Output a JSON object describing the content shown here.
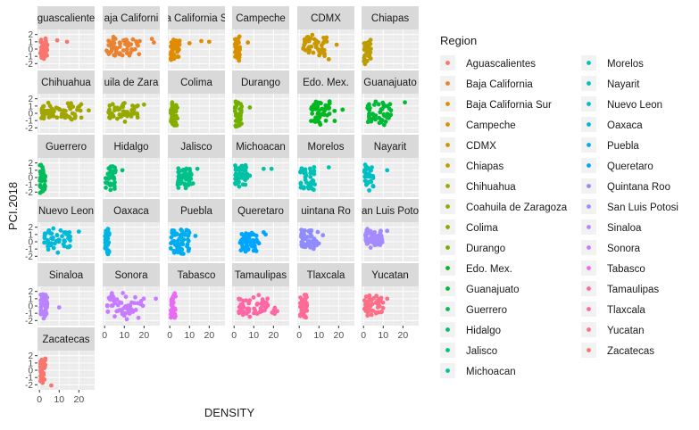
{
  "chart_data": {
    "type": "scatter",
    "xlabel": "DENSITY",
    "ylabel": "PCI.2018",
    "xlim": [
      -1,
      28
    ],
    "ylim": [
      -2.7,
      2.7
    ],
    "x_ticks": [
      0,
      10,
      20
    ],
    "y_ticks": [
      -2,
      -1,
      0,
      1,
      2
    ],
    "grid": true,
    "legend_title": "Region",
    "legend_position": "right",
    "panels": [
      {
        "name": "Aguascalientes",
        "label": "guascaliente",
        "color": "#F8766D",
        "x_range": [
          0.5,
          4
        ],
        "y_range": [
          -1.9,
          1.9
        ],
        "n": 40,
        "extra": [
          [
            9,
            1.2
          ],
          [
            14,
            1.0
          ]
        ]
      },
      {
        "name": "Baja California",
        "label": "aja Californi",
        "color": "#EA8331",
        "x_range": [
          1,
          18
        ],
        "y_range": [
          -1.2,
          2.0
        ],
        "n": 55,
        "extra": [
          [
            25,
            0.9
          ],
          [
            24,
            1.4
          ]
        ]
      },
      {
        "name": "Baja California Sur",
        "label": "a California S",
        "color": "#E08B00",
        "x_range": [
          0.5,
          5
        ],
        "y_range": [
          -1.7,
          2.0
        ],
        "n": 45,
        "extra": [
          [
            10,
            0.8
          ],
          [
            16,
            1.1
          ],
          [
            20,
            1.0
          ]
        ]
      },
      {
        "name": "Campeche",
        "label": "Campeche",
        "color": "#D89000",
        "x_range": [
          0.5,
          3
        ],
        "y_range": [
          -2.0,
          1.9
        ],
        "n": 35,
        "extra": [
          [
            7,
            0.9
          ]
        ]
      },
      {
        "name": "CDMX",
        "label": "CDMX",
        "color": "#C99800",
        "x_range": [
          2,
          14
        ],
        "y_range": [
          -1.0,
          2.0
        ],
        "n": 45,
        "extra": [
          [
            19,
            0.6
          ],
          [
            15,
            -1.4
          ]
        ]
      },
      {
        "name": "Chiapas",
        "label": "Chiapas",
        "color": "#BB9D00",
        "x_range": [
          0.2,
          4
        ],
        "y_range": [
          -2.2,
          2.0
        ],
        "n": 40,
        "extra": []
      },
      {
        "name": "Chihuahua",
        "label": "Chihuahua",
        "color": "#A3A500",
        "x_range": [
          1,
          22
        ],
        "y_range": [
          -1.3,
          1.6
        ],
        "n": 60,
        "extra": [
          [
            25,
            0.4
          ]
        ]
      },
      {
        "name": "Coahuila de Zaragoza",
        "label": "uila de Zara",
        "color": "#96A900",
        "x_range": [
          2,
          18
        ],
        "y_range": [
          -1.5,
          1.7
        ],
        "n": 55,
        "extra": [
          [
            20,
            1.2
          ]
        ]
      },
      {
        "name": "Colima",
        "label": "Colima",
        "color": "#85AD00",
        "x_range": [
          0.5,
          4
        ],
        "y_range": [
          -2.0,
          2.0
        ],
        "n": 30,
        "extra": []
      },
      {
        "name": "Durango",
        "label": "Durango",
        "color": "#72B000",
        "x_range": [
          0.5,
          4
        ],
        "y_range": [
          -2.0,
          2.0
        ],
        "n": 35,
        "extra": [
          [
            8,
            0.8
          ]
        ]
      },
      {
        "name": "Edo. Mex.",
        "label": "Edo. Mex.",
        "color": "#00B81F",
        "x_range": [
          6,
          18
        ],
        "y_range": [
          -1.8,
          2.0
        ],
        "n": 55,
        "extra": [
          [
            22,
            0.5
          ]
        ]
      },
      {
        "name": "Guanajuato",
        "label": "Guanajuato",
        "color": "#00B936",
        "x_range": [
          2,
          14
        ],
        "y_range": [
          -1.8,
          1.9
        ],
        "n": 55,
        "extra": [
          [
            21,
            1.5
          ]
        ]
      },
      {
        "name": "Guerrero",
        "label": "Guerrero",
        "color": "#00BC59",
        "x_range": [
          0.2,
          3
        ],
        "y_range": [
          -2.2,
          2.0
        ],
        "n": 40,
        "extra": []
      },
      {
        "name": "Hidalgo",
        "label": "Hidalgo",
        "color": "#00BE70",
        "x_range": [
          0.5,
          6
        ],
        "y_range": [
          -2.0,
          1.8
        ],
        "n": 40,
        "extra": [
          [
            9,
            1.0
          ]
        ]
      },
      {
        "name": "Jalisco",
        "label": "Jalisco",
        "color": "#00C08B",
        "x_range": [
          4,
          12
        ],
        "y_range": [
          -1.8,
          1.8
        ],
        "n": 50,
        "extra": [
          [
            14,
            1.2
          ]
        ]
      },
      {
        "name": "Michoacan",
        "label": "Michoacan",
        "color": "#00C1A2",
        "x_range": [
          0.5,
          8
        ],
        "y_range": [
          -1.5,
          1.9
        ],
        "n": 45,
        "extra": [
          [
            15,
            1.2
          ],
          [
            19,
            1.2
          ]
        ]
      },
      {
        "name": "Morelos",
        "label": "Morelos",
        "color": "#00C1B7",
        "x_range": [
          0.5,
          8
        ],
        "y_range": [
          -1.9,
          1.8
        ],
        "n": 40,
        "extra": [
          [
            15,
            1.4
          ]
        ]
      },
      {
        "name": "Nayarit",
        "label": "Nayarit",
        "color": "#00BFC4",
        "x_range": [
          0.5,
          5
        ],
        "y_range": [
          -2.0,
          1.9
        ],
        "n": 35,
        "extra": [
          [
            12,
            1.0
          ]
        ]
      },
      {
        "name": "Nuevo Leon",
        "label": "Nuevo Leon",
        "color": "#00BAD6",
        "x_range": [
          2,
          16
        ],
        "y_range": [
          -1.6,
          2.0
        ],
        "n": 55,
        "extra": [
          [
            20,
            1.4
          ]
        ]
      },
      {
        "name": "Oaxaca",
        "label": "Oaxaca",
        "color": "#00B4E4",
        "x_range": [
          0.2,
          2.5
        ],
        "y_range": [
          -2.2,
          2.0
        ],
        "n": 40,
        "extra": []
      },
      {
        "name": "Puebla",
        "label": "Puebla",
        "color": "#00ADF0",
        "x_range": [
          0.5,
          10
        ],
        "y_range": [
          -2.0,
          2.0
        ],
        "n": 60,
        "extra": [
          [
            13,
            0.8
          ]
        ]
      },
      {
        "name": "Queretaro",
        "label": "Queretaro",
        "color": "#00A5FF",
        "x_range": [
          3,
          13
        ],
        "y_range": [
          -1.7,
          1.5
        ],
        "n": 50,
        "extra": [
          [
            16,
            1.0
          ],
          [
            15,
            1.3
          ]
        ]
      },
      {
        "name": "Quintana Roo",
        "label": "uintana Ro",
        "color": "#8E8CFF",
        "x_range": [
          1,
          10
        ],
        "y_range": [
          -1.2,
          2.0
        ],
        "n": 55,
        "extra": [
          [
            12,
            0.9
          ]
        ]
      },
      {
        "name": "San Luis Potosi",
        "label": "an Luis Poto",
        "color": "#A58AFF",
        "x_range": [
          1,
          10
        ],
        "y_range": [
          -1.0,
          2.0
        ],
        "n": 55,
        "extra": [
          [
            12,
            1.5
          ]
        ]
      },
      {
        "name": "Sinaloa",
        "label": "Sinaloa",
        "color": "#B983FF",
        "x_range": [
          0.5,
          4
        ],
        "y_range": [
          -2.0,
          2.0
        ],
        "n": 40,
        "extra": [
          [
            10,
            -0.2
          ]
        ]
      },
      {
        "name": "Sonora",
        "label": "Sonora",
        "color": "#C77CFF",
        "x_range": [
          1,
          20
        ],
        "y_range": [
          -2.0,
          1.9
        ],
        "n": 55,
        "extra": [
          [
            26,
            1.0
          ]
        ]
      },
      {
        "name": "Tabasco",
        "label": "Tabasco",
        "color": "#E76BF3",
        "x_range": [
          0.5,
          3
        ],
        "y_range": [
          -2.0,
          2.0
        ],
        "n": 35,
        "extra": []
      },
      {
        "name": "Tamaulipas",
        "label": "Tamaulipas",
        "color": "#FF67A4",
        "x_range": [
          2,
          22
        ],
        "y_range": [
          -1.6,
          1.6
        ],
        "n": 55,
        "extra": []
      },
      {
        "name": "Tlaxcala",
        "label": "Tlaxcala",
        "color": "#FF6B97",
        "x_range": [
          0.5,
          4
        ],
        "y_range": [
          -2.0,
          2.0
        ],
        "n": 40,
        "extra": []
      },
      {
        "name": "Yucatan",
        "label": "Yucatan",
        "color": "#FD6F86",
        "x_range": [
          0.5,
          10
        ],
        "y_range": [
          -1.5,
          2.0
        ],
        "n": 50,
        "extra": [
          [
            12,
            1.0
          ]
        ]
      },
      {
        "name": "Zacatecas",
        "label": "Zacatecas",
        "color": "#F8766D",
        "x_range": [
          0.5,
          3
        ],
        "y_range": [
          -2.0,
          2.0
        ],
        "n": 40,
        "extra": [
          [
            6,
            -2.1
          ]
        ]
      }
    ]
  }
}
